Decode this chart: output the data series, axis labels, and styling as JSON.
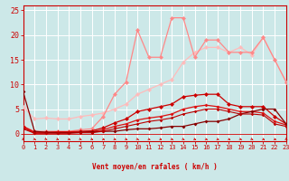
{
  "xlabel": "Vent moyen/en rafales ( km/h )",
  "xlim": [
    0,
    23
  ],
  "ylim": [
    -1.5,
    26
  ],
  "yticks": [
    0,
    5,
    10,
    15,
    20,
    25
  ],
  "xticks": [
    0,
    1,
    2,
    3,
    4,
    5,
    6,
    7,
    8,
    9,
    10,
    11,
    12,
    13,
    14,
    15,
    16,
    17,
    18,
    19,
    20,
    21,
    22,
    23
  ],
  "bg_color": "#cce8e8",
  "grid_color": "#ffffff",
  "lines": [
    {
      "x": [
        0,
        1,
        2,
        3,
        4,
        5,
        6,
        7,
        8,
        9,
        10,
        11,
        12,
        13,
        14,
        15,
        16,
        17,
        18,
        19,
        20,
        21,
        22,
        23
      ],
      "y": [
        5.5,
        3.0,
        3.2,
        3.0,
        3.0,
        3.5,
        3.8,
        4.2,
        5.0,
        6.0,
        8.0,
        9.0,
        10.0,
        11.0,
        14.5,
        16.5,
        17.5,
        17.5,
        16.5,
        17.5,
        16.0,
        19.5,
        15.0,
        10.5
      ],
      "color": "#ffbbbb",
      "lw": 0.9,
      "marker": "D",
      "ms": 2.5
    },
    {
      "x": [
        0,
        1,
        2,
        3,
        4,
        5,
        6,
        7,
        8,
        9,
        10,
        11,
        12,
        13,
        14,
        15,
        16,
        17,
        18,
        19,
        20,
        21,
        22,
        23
      ],
      "y": [
        1.5,
        0.5,
        0.5,
        0.5,
        0.5,
        0.8,
        1.0,
        3.5,
        8.0,
        10.5,
        21.0,
        15.5,
        15.5,
        23.5,
        23.5,
        15.5,
        19.0,
        19.0,
        16.5,
        16.5,
        16.5,
        19.5,
        15.0,
        10.5
      ],
      "color": "#ff8888",
      "lw": 0.9,
      "marker": "D",
      "ms": 2.5
    },
    {
      "x": [
        0,
        1,
        2,
        3,
        4,
        5,
        6,
        7,
        8,
        9,
        10,
        11,
        12,
        13,
        14,
        15,
        16,
        17,
        18,
        19,
        20,
        21,
        22,
        23
      ],
      "y": [
        1.5,
        0.3,
        0.3,
        0.4,
        0.4,
        0.5,
        0.6,
        1.2,
        2.2,
        3.0,
        4.5,
        5.0,
        5.5,
        6.0,
        7.5,
        7.8,
        8.0,
        8.0,
        6.0,
        5.5,
        5.5,
        5.5,
        3.5,
        2.0
      ],
      "color": "#cc0000",
      "lw": 0.9,
      "marker": "D",
      "ms": 2.5
    },
    {
      "x": [
        0,
        1,
        2,
        3,
        4,
        5,
        6,
        7,
        8,
        9,
        10,
        11,
        12,
        13,
        14,
        15,
        16,
        17,
        18,
        19,
        20,
        21,
        22,
        23
      ],
      "y": [
        1.2,
        0.2,
        0.2,
        0.3,
        0.3,
        0.4,
        0.4,
        0.8,
        1.5,
        2.0,
        2.8,
        3.2,
        3.5,
        4.0,
        5.0,
        5.5,
        5.8,
        5.5,
        5.0,
        4.5,
        4.5,
        4.2,
        2.5,
        1.8
      ],
      "color": "#dd1111",
      "lw": 0.9,
      "marker": "D",
      "ms": 2.0
    },
    {
      "x": [
        0,
        1,
        2,
        3,
        4,
        5,
        6,
        7,
        8,
        9,
        10,
        11,
        12,
        13,
        14,
        15,
        16,
        17,
        18,
        19,
        20,
        21,
        22,
        23
      ],
      "y": [
        8.5,
        0.5,
        0.3,
        0.2,
        0.2,
        0.3,
        0.4,
        0.5,
        0.5,
        0.8,
        1.0,
        1.0,
        1.2,
        1.5,
        1.5,
        2.0,
        2.5,
        2.5,
        3.0,
        4.0,
        4.5,
        5.0,
        5.0,
        2.0
      ],
      "color": "#880000",
      "lw": 0.9,
      "marker": "D",
      "ms": 2.0
    },
    {
      "x": [
        0,
        1,
        2,
        3,
        4,
        5,
        6,
        7,
        8,
        9,
        10,
        11,
        12,
        13,
        14,
        15,
        16,
        17,
        18,
        19,
        20,
        21,
        22,
        23
      ],
      "y": [
        1.0,
        0.1,
        0.1,
        0.1,
        0.1,
        0.2,
        0.2,
        0.5,
        1.0,
        1.5,
        2.0,
        2.5,
        2.8,
        3.2,
        4.0,
        4.5,
        5.0,
        5.0,
        4.5,
        4.0,
        4.0,
        3.8,
        2.0,
        1.5
      ],
      "color": "#bb0000",
      "lw": 0.8,
      "marker": "D",
      "ms": 1.8
    }
  ],
  "arrow_color": "#cc0000",
  "arrow_angles": [
    -45,
    -50,
    -55,
    -45,
    -40,
    -50,
    -45,
    -35,
    -40,
    -45,
    -50,
    -40,
    -35,
    -45,
    -50,
    -45,
    -40,
    -35,
    -40,
    -45,
    -50,
    -40,
    -35,
    -45
  ]
}
